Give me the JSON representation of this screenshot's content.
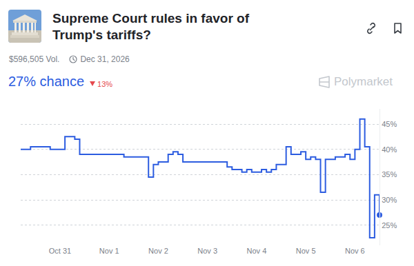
{
  "header": {
    "volume": "$596,505 Vol.",
    "end_date": "Dec 31, 2026",
    "chance": "27% chance",
    "change": "13%",
    "brand": "Polymarket"
  },
  "chart_data": {
    "type": "line",
    "title": "Supreme Court rules in favor of Trump's tariffs?",
    "categories": [
      null,
      null,
      null,
      null,
      null,
      null,
      null,
      null,
      "Oct 31",
      null,
      null,
      null,
      null,
      null,
      null,
      null,
      null,
      null,
      "Nov 1",
      null,
      null,
      null,
      null,
      null,
      null,
      null,
      null,
      null,
      "Nov 2",
      null,
      null,
      null,
      null,
      null,
      null,
      null,
      null,
      null,
      "Nov 3",
      null,
      null,
      null,
      null,
      null,
      null,
      null,
      null,
      null,
      "Nov 4",
      null,
      null,
      null,
      null,
      null,
      null,
      null,
      null,
      null,
      "Nov 5",
      null,
      null,
      null,
      null,
      null,
      null,
      null,
      null,
      null,
      "Nov 6",
      null,
      null,
      null,
      null,
      null
    ],
    "values": [
      40,
      40,
      40.5,
      40.5,
      40.5,
      40.5,
      40,
      40,
      40,
      42.5,
      42.5,
      42,
      39,
      39,
      39,
      39,
      39,
      39,
      39,
      39,
      39,
      38.5,
      38.5,
      38.5,
      38.5,
      38.5,
      34.5,
      37,
      37.5,
      37.5,
      39,
      39.5,
      39,
      37.5,
      37.5,
      37.5,
      37.5,
      37.5,
      37.5,
      37.5,
      37.5,
      37.5,
      36.5,
      36,
      36,
      35.5,
      36,
      35.5,
      35.5,
      36,
      35.5,
      36,
      37,
      37,
      40.5,
      39,
      39,
      39.5,
      38,
      38.5,
      38,
      31.5,
      38,
      38,
      38.5,
      38.5,
      39,
      38,
      40,
      46,
      40.5,
      22.5,
      31,
      27
    ],
    "color": "#2c5ce0",
    "line_style": "step",
    "ylim": [
      21,
      48
    ],
    "yticks": [
      {
        "value": 25,
        "label": "25%"
      },
      {
        "value": 30,
        "label": "30%"
      },
      {
        "value": 35,
        "label": "35%"
      },
      {
        "value": 40,
        "label": "40%"
      },
      {
        "value": 45,
        "label": "45%"
      }
    ],
    "grid": true
  }
}
